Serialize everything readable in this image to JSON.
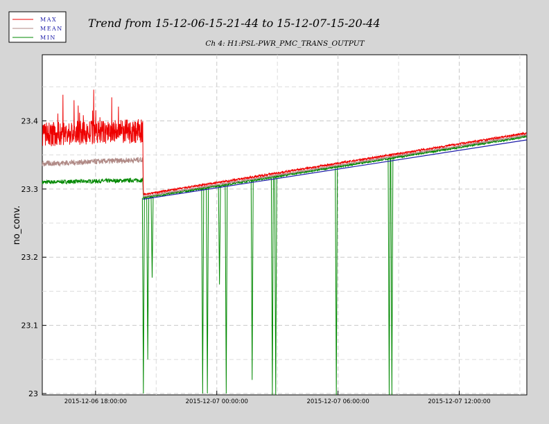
{
  "chart_data": {
    "type": "line",
    "title": "Trend from 15-12-06-15-21-44 to 15-12-07-15-20-44",
    "subtitle": "Ch 4: H1:PSL-PWR_PMC_TRANS_OUTPUT",
    "ylabel": "no_conv.",
    "xlabel": "",
    "ylim": [
      22.998,
      23.497
    ],
    "xlim": [
      "2015-12-06 15:21:44",
      "2015-12-07 15:20:44"
    ],
    "yticks": [
      "23",
      "23.1",
      "23.2",
      "23.3",
      "23.4"
    ],
    "xticks": [
      "2015-12-06 18:00:00",
      "2015-12-07 00:00:00",
      "2015-12-07 06:00:00",
      "2015-12-07 12:00:00"
    ],
    "grid": true,
    "legend_position": "top-left",
    "step_time": "2015-12-06 20:21",
    "fit_line": [
      {
        "x": "2015-12-06 20:21",
        "y": 23.285
      },
      {
        "x": "2015-12-07 15:20",
        "y": 23.372
      }
    ],
    "series": [
      {
        "name": "MAX",
        "color": "#ee0000",
        "points": [
          {
            "x": "2015-12-06 15:22",
            "y": 23.38
          },
          {
            "x": "2015-12-06 20:20",
            "y": 23.385
          },
          {
            "x": "2015-12-06 20:22",
            "y": 23.292
          },
          {
            "x": "2015-12-07 15:20",
            "y": 23.382
          }
        ]
      },
      {
        "name": "MEAN",
        "color": "#b08a86",
        "points": [
          {
            "x": "2015-12-06 15:22",
            "y": 23.337
          },
          {
            "x": "2015-12-06 20:20",
            "y": 23.343
          },
          {
            "x": "2015-12-06 20:22",
            "y": 23.289
          },
          {
            "x": "2015-12-07 15:20",
            "y": 23.379
          }
        ]
      },
      {
        "name": "MIN",
        "color": "#008800",
        "points": [
          {
            "x": "2015-12-06 15:22",
            "y": 23.31
          },
          {
            "x": "2015-12-06 20:20",
            "y": 23.313
          },
          {
            "x": "2015-12-06 20:22",
            "y": 23.287
          },
          {
            "x": "2015-12-07 15:20",
            "y": 23.377
          }
        ],
        "dropouts": [
          {
            "x": "2015-12-06 20:22",
            "y": 23.0
          },
          {
            "x": "2015-12-06 20:35",
            "y": 23.05
          },
          {
            "x": "2015-12-06 20:48",
            "y": 23.17
          },
          {
            "x": "2015-12-06 23:18",
            "y": 23.0
          },
          {
            "x": "2015-12-06 23:32",
            "y": 23.0
          },
          {
            "x": "2015-12-07 00:08",
            "y": 23.16
          },
          {
            "x": "2015-12-07 00:28",
            "y": 23.0
          },
          {
            "x": "2015-12-07 01:45",
            "y": 23.02
          },
          {
            "x": "2015-12-07 02:45",
            "y": 22.998
          },
          {
            "x": "2015-12-07 02:55",
            "y": 22.998
          },
          {
            "x": "2015-12-07 05:55",
            "y": 22.998
          },
          {
            "x": "2015-12-07 08:32",
            "y": 22.998
          },
          {
            "x": "2015-12-07 08:40",
            "y": 22.998
          }
        ]
      }
    ]
  }
}
